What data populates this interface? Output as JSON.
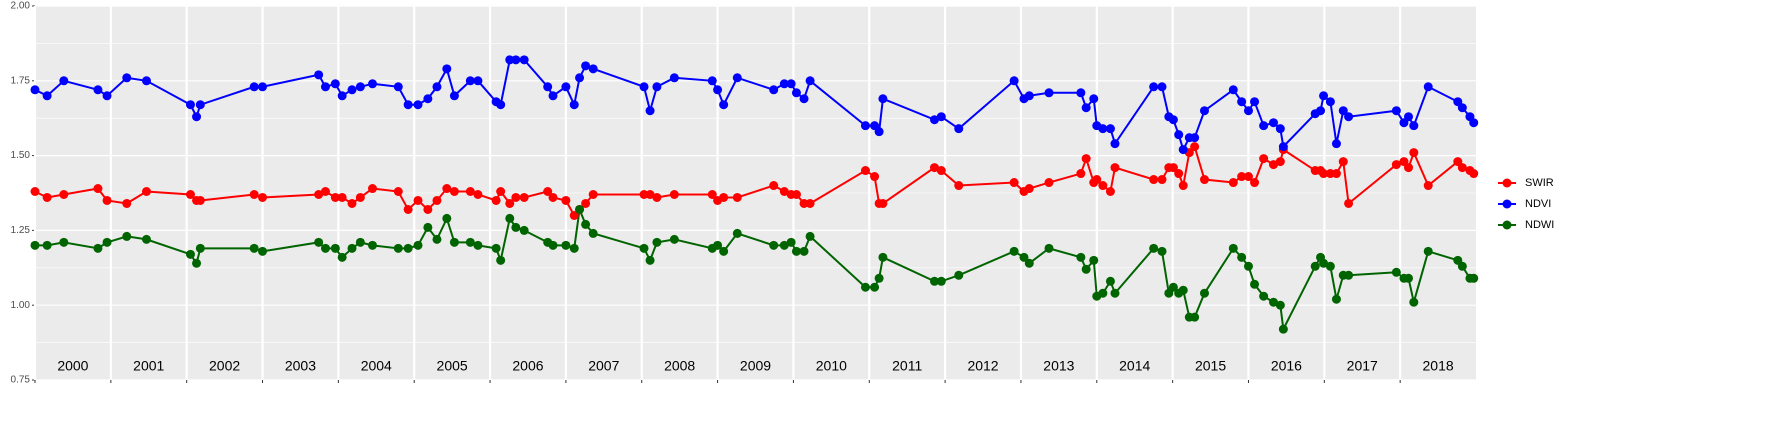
{
  "chart_data": {
    "type": "line",
    "x": [
      2000.0,
      2000.16,
      2000.38,
      2000.83,
      2000.95,
      2001.21,
      2001.47,
      2002.05,
      2002.13,
      2002.18,
      2002.89,
      2003.0,
      2003.74,
      2003.83,
      2003.96,
      2004.05,
      2004.18,
      2004.29,
      2004.45,
      2004.79,
      2004.92,
      2005.05,
      2005.18,
      2005.3,
      2005.43,
      2005.53,
      2005.74,
      2005.84,
      2006.08,
      2006.14,
      2006.26,
      2006.34,
      2006.45,
      2006.76,
      2006.83,
      2007.0,
      2007.11,
      2007.18,
      2007.26,
      2007.36,
      2008.03,
      2008.11,
      2008.2,
      2008.43,
      2008.93,
      2009.0,
      2009.08,
      2009.26,
      2009.74,
      2009.88,
      2009.97,
      2010.04,
      2010.14,
      2010.22,
      2010.95,
      2011.07,
      2011.13,
      2011.18,
      2011.86,
      2011.95,
      2012.18,
      2012.91,
      2013.04,
      2013.11,
      2013.37,
      2013.79,
      2013.86,
      2013.96,
      2014.0,
      2014.08,
      2014.18,
      2014.24,
      2014.75,
      2014.86,
      2014.95,
      2015.01,
      2015.08,
      2015.14,
      2015.22,
      2015.29,
      2015.42,
      2015.8,
      2015.91,
      2016.0,
      2016.08,
      2016.2,
      2016.33,
      2016.42,
      2016.46,
      2016.88,
      2016.95,
      2016.99,
      2017.08,
      2017.16,
      2017.25,
      2017.32,
      2017.95,
      2018.05,
      2018.11,
      2018.18,
      2018.37,
      2018.76,
      2018.82,
      2018.92,
      2018.97
    ],
    "series": [
      {
        "name": "SWIR",
        "color": "#ff0000",
        "values": [
          1.38,
          1.36,
          1.37,
          1.39,
          1.35,
          1.34,
          1.38,
          1.37,
          1.35,
          1.35,
          1.37,
          1.36,
          1.37,
          1.38,
          1.36,
          1.36,
          1.34,
          1.36,
          1.39,
          1.38,
          1.32,
          1.35,
          1.32,
          1.35,
          1.39,
          1.38,
          1.38,
          1.37,
          1.35,
          1.38,
          1.34,
          1.36,
          1.36,
          1.38,
          1.36,
          1.35,
          1.3,
          1.32,
          1.34,
          1.37,
          1.37,
          1.37,
          1.36,
          1.37,
          1.37,
          1.35,
          1.36,
          1.36,
          1.4,
          1.38,
          1.37,
          1.37,
          1.34,
          1.34,
          1.45,
          1.43,
          1.34,
          1.34,
          1.46,
          1.45,
          1.4,
          1.41,
          1.38,
          1.39,
          1.41,
          1.44,
          1.49,
          1.41,
          1.42,
          1.4,
          1.38,
          1.46,
          1.42,
          1.42,
          1.46,
          1.46,
          1.44,
          1.4,
          1.51,
          1.53,
          1.42,
          1.41,
          1.43,
          1.43,
          1.41,
          1.49,
          1.47,
          1.48,
          1.52,
          1.45,
          1.45,
          1.44,
          1.44,
          1.44,
          1.48,
          1.34,
          1.47,
          1.48,
          1.46,
          1.51,
          1.4,
          1.48,
          1.46,
          1.45,
          1.44
        ]
      },
      {
        "name": "NDVI",
        "color": "#0000ff",
        "values": [
          1.72,
          1.7,
          1.75,
          1.72,
          1.7,
          1.76,
          1.75,
          1.67,
          1.63,
          1.67,
          1.73,
          1.73,
          1.77,
          1.73,
          1.74,
          1.7,
          1.72,
          1.73,
          1.74,
          1.73,
          1.67,
          1.67,
          1.69,
          1.73,
          1.79,
          1.7,
          1.75,
          1.75,
          1.68,
          1.67,
          1.82,
          1.82,
          1.82,
          1.73,
          1.7,
          1.73,
          1.67,
          1.76,
          1.8,
          1.79,
          1.73,
          1.65,
          1.73,
          1.76,
          1.75,
          1.72,
          1.67,
          1.76,
          1.72,
          1.74,
          1.74,
          1.71,
          1.69,
          1.75,
          1.6,
          1.6,
          1.58,
          1.69,
          1.62,
          1.63,
          1.59,
          1.75,
          1.69,
          1.7,
          1.71,
          1.71,
          1.66,
          1.69,
          1.6,
          1.59,
          1.59,
          1.54,
          1.73,
          1.73,
          1.63,
          1.62,
          1.57,
          1.52,
          1.56,
          1.56,
          1.65,
          1.72,
          1.68,
          1.65,
          1.68,
          1.6,
          1.61,
          1.59,
          1.53,
          1.64,
          1.65,
          1.7,
          1.68,
          1.54,
          1.65,
          1.63,
          1.65,
          1.61,
          1.63,
          1.6,
          1.73,
          1.68,
          1.66,
          1.63,
          1.61
        ]
      },
      {
        "name": "NDWI",
        "color": "#006400",
        "values": [
          1.2,
          1.2,
          1.21,
          1.19,
          1.21,
          1.23,
          1.22,
          1.17,
          1.14,
          1.19,
          1.19,
          1.18,
          1.21,
          1.19,
          1.19,
          1.16,
          1.19,
          1.21,
          1.2,
          1.19,
          1.19,
          1.2,
          1.26,
          1.22,
          1.29,
          1.21,
          1.21,
          1.2,
          1.19,
          1.15,
          1.29,
          1.26,
          1.25,
          1.21,
          1.2,
          1.2,
          1.19,
          1.32,
          1.27,
          1.24,
          1.19,
          1.15,
          1.21,
          1.22,
          1.19,
          1.2,
          1.18,
          1.24,
          1.2,
          1.2,
          1.21,
          1.18,
          1.18,
          1.23,
          1.06,
          1.06,
          1.09,
          1.16,
          1.08,
          1.08,
          1.1,
          1.18,
          1.16,
          1.14,
          1.19,
          1.16,
          1.12,
          1.15,
          1.03,
          1.04,
          1.08,
          1.04,
          1.19,
          1.18,
          1.04,
          1.06,
          1.04,
          1.05,
          0.96,
          0.96,
          1.04,
          1.19,
          1.16,
          1.13,
          1.07,
          1.03,
          1.01,
          1.0,
          0.92,
          1.13,
          1.16,
          1.14,
          1.13,
          1.02,
          1.1,
          1.1,
          1.11,
          1.09,
          1.09,
          1.01,
          1.18,
          1.15,
          1.13,
          1.09,
          1.09
        ]
      }
    ],
    "xlim": [
      2000,
      2019
    ],
    "xticks": [
      2000,
      2001,
      2002,
      2003,
      2004,
      2005,
      2006,
      2007,
      2008,
      2009,
      2010,
      2011,
      2012,
      2013,
      2014,
      2015,
      2016,
      2017,
      2018
    ],
    "ylim": [
      0.75,
      2.0
    ],
    "yticks": [
      {
        "value": 0.75,
        "label": "0.75"
      },
      {
        "value": 1.0,
        "label": "1.00"
      },
      {
        "value": 1.25,
        "label": "1.25"
      },
      {
        "value": 1.5,
        "label": "1.50"
      },
      {
        "value": 1.75,
        "label": "1.75"
      },
      {
        "value": 2.0,
        "label": "2.00"
      }
    ],
    "grid": true,
    "legend": "right"
  }
}
